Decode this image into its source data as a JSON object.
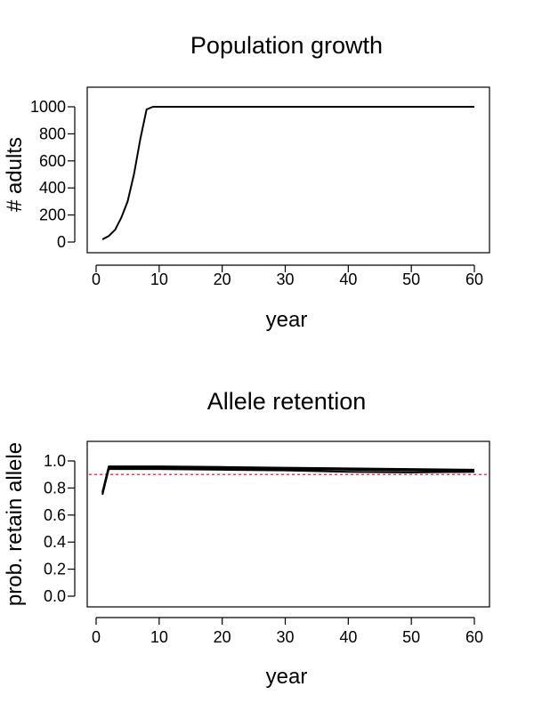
{
  "chart_data": [
    {
      "type": "line",
      "title": "Population growth",
      "xlabel": "year",
      "ylabel": "# adults",
      "xlim": [
        0,
        60
      ],
      "ylim": [
        0,
        1000
      ],
      "x_ticks": [
        0,
        10,
        20,
        30,
        40,
        50,
        60
      ],
      "y_ticks": [
        0,
        200,
        400,
        600,
        800,
        1000
      ],
      "grid": false,
      "series": [
        {
          "color": "#000000",
          "x": [
            1,
            2,
            3,
            4,
            5,
            6,
            7,
            8,
            9,
            10,
            20,
            30,
            40,
            50,
            60
          ],
          "y": [
            20,
            45,
            90,
            180,
            300,
            500,
            760,
            980,
            1000,
            1000,
            1000,
            1000,
            1000,
            1000,
            1000
          ]
        }
      ]
    },
    {
      "type": "line",
      "title": "Allele retention",
      "xlabel": "year",
      "ylabel": "prob. retain allele",
      "xlim": [
        0,
        60
      ],
      "ylim": [
        0,
        1.0
      ],
      "x_ticks": [
        0,
        10,
        20,
        30,
        40,
        50,
        60
      ],
      "y_ticks": [
        0.0,
        0.2,
        0.4,
        0.6,
        0.8,
        1.0
      ],
      "y_tick_labels": [
        "0.0",
        "0.2",
        "0.4",
        "0.6",
        "0.8",
        "1.0"
      ],
      "grid": false,
      "series": [
        {
          "color": "#000000",
          "x": [
            1,
            2,
            10,
            20,
            30,
            40,
            50,
            60
          ],
          "y": [
            0.77,
            0.96,
            0.96,
            0.955,
            0.95,
            0.945,
            0.94,
            0.935
          ]
        },
        {
          "color": "#000000",
          "x": [
            1,
            2,
            10,
            20,
            30,
            40,
            50,
            60
          ],
          "y": [
            0.76,
            0.95,
            0.95,
            0.945,
            0.94,
            0.935,
            0.93,
            0.925
          ]
        },
        {
          "color": "#000000",
          "x": [
            1,
            2,
            10,
            20,
            30,
            40,
            50,
            60
          ],
          "y": [
            0.75,
            0.94,
            0.94,
            0.935,
            0.93,
            0.92,
            0.915,
            0.92
          ]
        }
      ],
      "reference_line": {
        "y": 0.9,
        "color": "#e8001c",
        "style": "dashed"
      }
    }
  ]
}
